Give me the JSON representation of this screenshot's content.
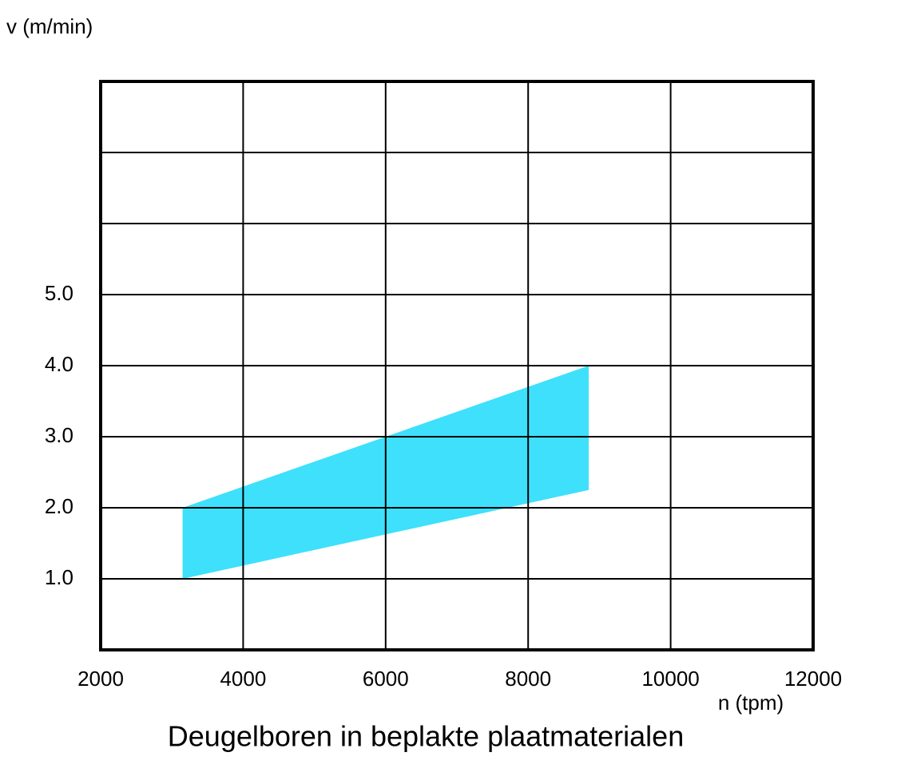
{
  "chart_data": {
    "type": "band",
    "title": "Deugelboren in beplakte plaatmaterialen",
    "x_label": "n (tpm)",
    "y_label": "v (m/min)",
    "x": [
      3150,
      8850
    ],
    "upper": [
      2.0,
      4.0
    ],
    "lower": [
      1.0,
      2.25
    ],
    "color": "#3ee0fc",
    "xlim": [
      2000,
      12000
    ],
    "xticks": [
      2000,
      4000,
      6000,
      8000,
      10000,
      12000
    ],
    "ylim": [
      0,
      8
    ],
    "yticks": [
      {
        "value": 1,
        "label": "1.0"
      },
      {
        "value": 2,
        "label": "2.0"
      },
      {
        "value": 3,
        "label": "3.0"
      },
      {
        "value": 4,
        "label": "4.0"
      },
      {
        "value": 5,
        "label": "5.0"
      }
    ],
    "ygrid": [
      1,
      2,
      3,
      4,
      5,
      6,
      7
    ],
    "grid": true
  }
}
